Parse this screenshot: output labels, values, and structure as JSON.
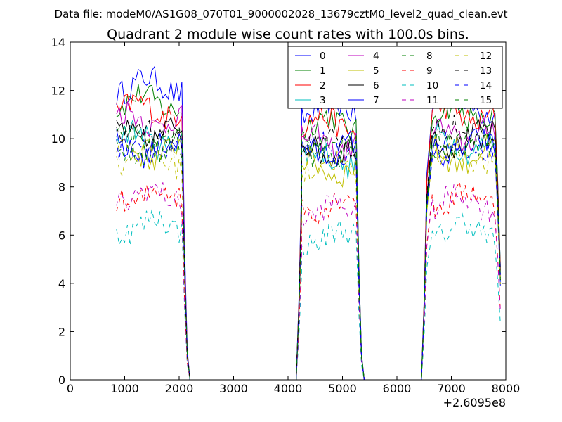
{
  "figure": {
    "suptitle": "Data file: modeM0/AS1G08_070T01_9000002028_13679cztM0_level2_quad_clean.evt"
  },
  "chart_data": {
    "type": "line",
    "title": "Quadrant 2 module wise count rates with 100.0s bins.",
    "xlabel": "",
    "ylabel": "",
    "x_offset_label": "+2.6095e8",
    "xlim": [
      0,
      8000
    ],
    "ylim": [
      0,
      14
    ],
    "x_ticks": [
      0,
      1000,
      2000,
      3000,
      4000,
      5000,
      6000,
      7000,
      8000
    ],
    "y_ticks": [
      0,
      2,
      4,
      6,
      8,
      10,
      12,
      14
    ],
    "grid": false,
    "legend_placement": "top-right",
    "legend_columns": 4,
    "segments": [
      {
        "start": 850,
        "end": 2050
      },
      {
        "start": 4250,
        "end": 5250
      },
      {
        "start": 6650,
        "end": 7800
      }
    ],
    "zero_gaps": [
      {
        "from": 2200,
        "to": 4150
      },
      {
        "from": 5400,
        "to": 6450
      }
    ],
    "series": [
      {
        "name": "0",
        "color": "#0000ff",
        "dash": "solid",
        "levels": [
          12.2,
          11.2,
          11.4
        ]
      },
      {
        "name": "1",
        "color": "#008000",
        "dash": "solid",
        "levels": [
          11.5,
          10.6,
          11.0
        ]
      },
      {
        "name": "2",
        "color": "#ff0000",
        "dash": "solid",
        "levels": [
          11.2,
          10.6,
          11.0
        ]
      },
      {
        "name": "3",
        "color": "#00bfbf",
        "dash": "solid",
        "levels": [
          10.0,
          9.2,
          9.8
        ]
      },
      {
        "name": "4",
        "color": "#bf00bf",
        "dash": "solid",
        "levels": [
          10.8,
          9.8,
          10.2
        ]
      },
      {
        "name": "5",
        "color": "#bfbf00",
        "dash": "solid",
        "levels": [
          9.5,
          8.8,
          9.3
        ]
      },
      {
        "name": "6",
        "color": "#000000",
        "dash": "solid",
        "levels": [
          10.2,
          9.6,
          10.0
        ]
      },
      {
        "name": "7",
        "color": "#0000ff",
        "dash": "solid",
        "levels": [
          9.6,
          9.6,
          9.6
        ]
      },
      {
        "name": "8",
        "color": "#008000",
        "dash": "dashed",
        "levels": [
          9.6,
          9.5,
          9.7
        ]
      },
      {
        "name": "9",
        "color": "#ff0000",
        "dash": "dashed",
        "levels": [
          7.6,
          7.3,
          7.5
        ]
      },
      {
        "name": "10",
        "color": "#00bfbf",
        "dash": "dashed",
        "levels": [
          6.4,
          5.9,
          6.2
        ]
      },
      {
        "name": "11",
        "color": "#bf00bf",
        "dash": "dashed",
        "levels": [
          7.6,
          7.0,
          7.4
        ]
      },
      {
        "name": "12",
        "color": "#bfbf00",
        "dash": "dashed",
        "levels": [
          9.2,
          8.8,
          9.3
        ]
      },
      {
        "name": "13",
        "color": "#000000",
        "dash": "dashed",
        "levels": [
          10.2,
          9.8,
          10.2
        ]
      },
      {
        "name": "14",
        "color": "#0000ff",
        "dash": "dashed",
        "levels": [
          9.6,
          9.4,
          9.5
        ]
      },
      {
        "name": "15",
        "color": "#008000",
        "dash": "dashed",
        "levels": [
          9.8,
          9.6,
          9.8
        ]
      }
    ]
  }
}
